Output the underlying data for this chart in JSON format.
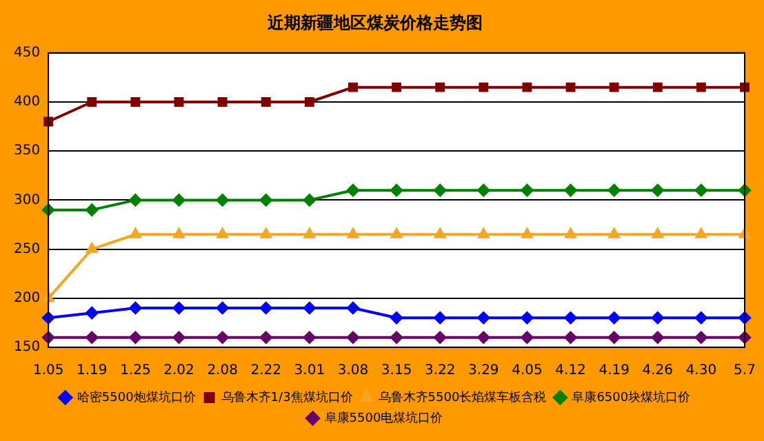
{
  "chart_data": {
    "type": "line",
    "title": "近期新疆地区煤炭价格走势图",
    "categories": [
      "1.05",
      "1.19",
      "1.25",
      "2.02",
      "2.08",
      "2.22",
      "3.01",
      "3.08",
      "3.15",
      "3.22",
      "3.29",
      "4.05",
      "4.12",
      "4.19",
      "4.26",
      "4.30",
      "5.7"
    ],
    "series": [
      {
        "name": "哈密5500炮煤坑口价",
        "color": "#0000ff",
        "values": [
          180,
          185,
          190,
          190,
          190,
          190,
          190,
          190,
          180,
          180,
          180,
          180,
          180,
          180,
          180,
          180,
          180
        ]
      },
      {
        "name": "乌鲁木齐1/3焦煤坑口价",
        "color": "#800000",
        "marker": "square",
        "values": [
          380,
          400,
          400,
          400,
          400,
          400,
          400,
          415,
          415,
          415,
          415,
          415,
          415,
          415,
          415,
          415,
          415
        ]
      },
      {
        "name": "乌鲁木齐5500长焰煤车板含税",
        "color": "#f5a623",
        "marker": "triangle",
        "values": [
          200,
          250,
          265,
          265,
          265,
          265,
          265,
          265,
          265,
          265,
          265,
          265,
          265,
          265,
          265,
          265,
          265
        ]
      },
      {
        "name": "阜康6500块煤坑口价",
        "color": "#008000",
        "values": [
          290,
          290,
          300,
          300,
          300,
          300,
          300,
          310,
          310,
          310,
          310,
          310,
          310,
          310,
          310,
          310,
          310
        ]
      },
      {
        "name": "阜康5500电煤坑口价",
        "color": "#660066",
        "values": [
          160,
          160,
          160,
          160,
          160,
          160,
          160,
          160,
          160,
          160,
          160,
          160,
          160,
          160,
          160,
          160,
          160
        ]
      }
    ],
    "ylim": [
      150,
      450
    ],
    "yticks": [
      150,
      200,
      250,
      300,
      350,
      400,
      450
    ],
    "grid": "y",
    "legend": "bottom",
    "marker": "diamond",
    "line_style": "solid"
  }
}
